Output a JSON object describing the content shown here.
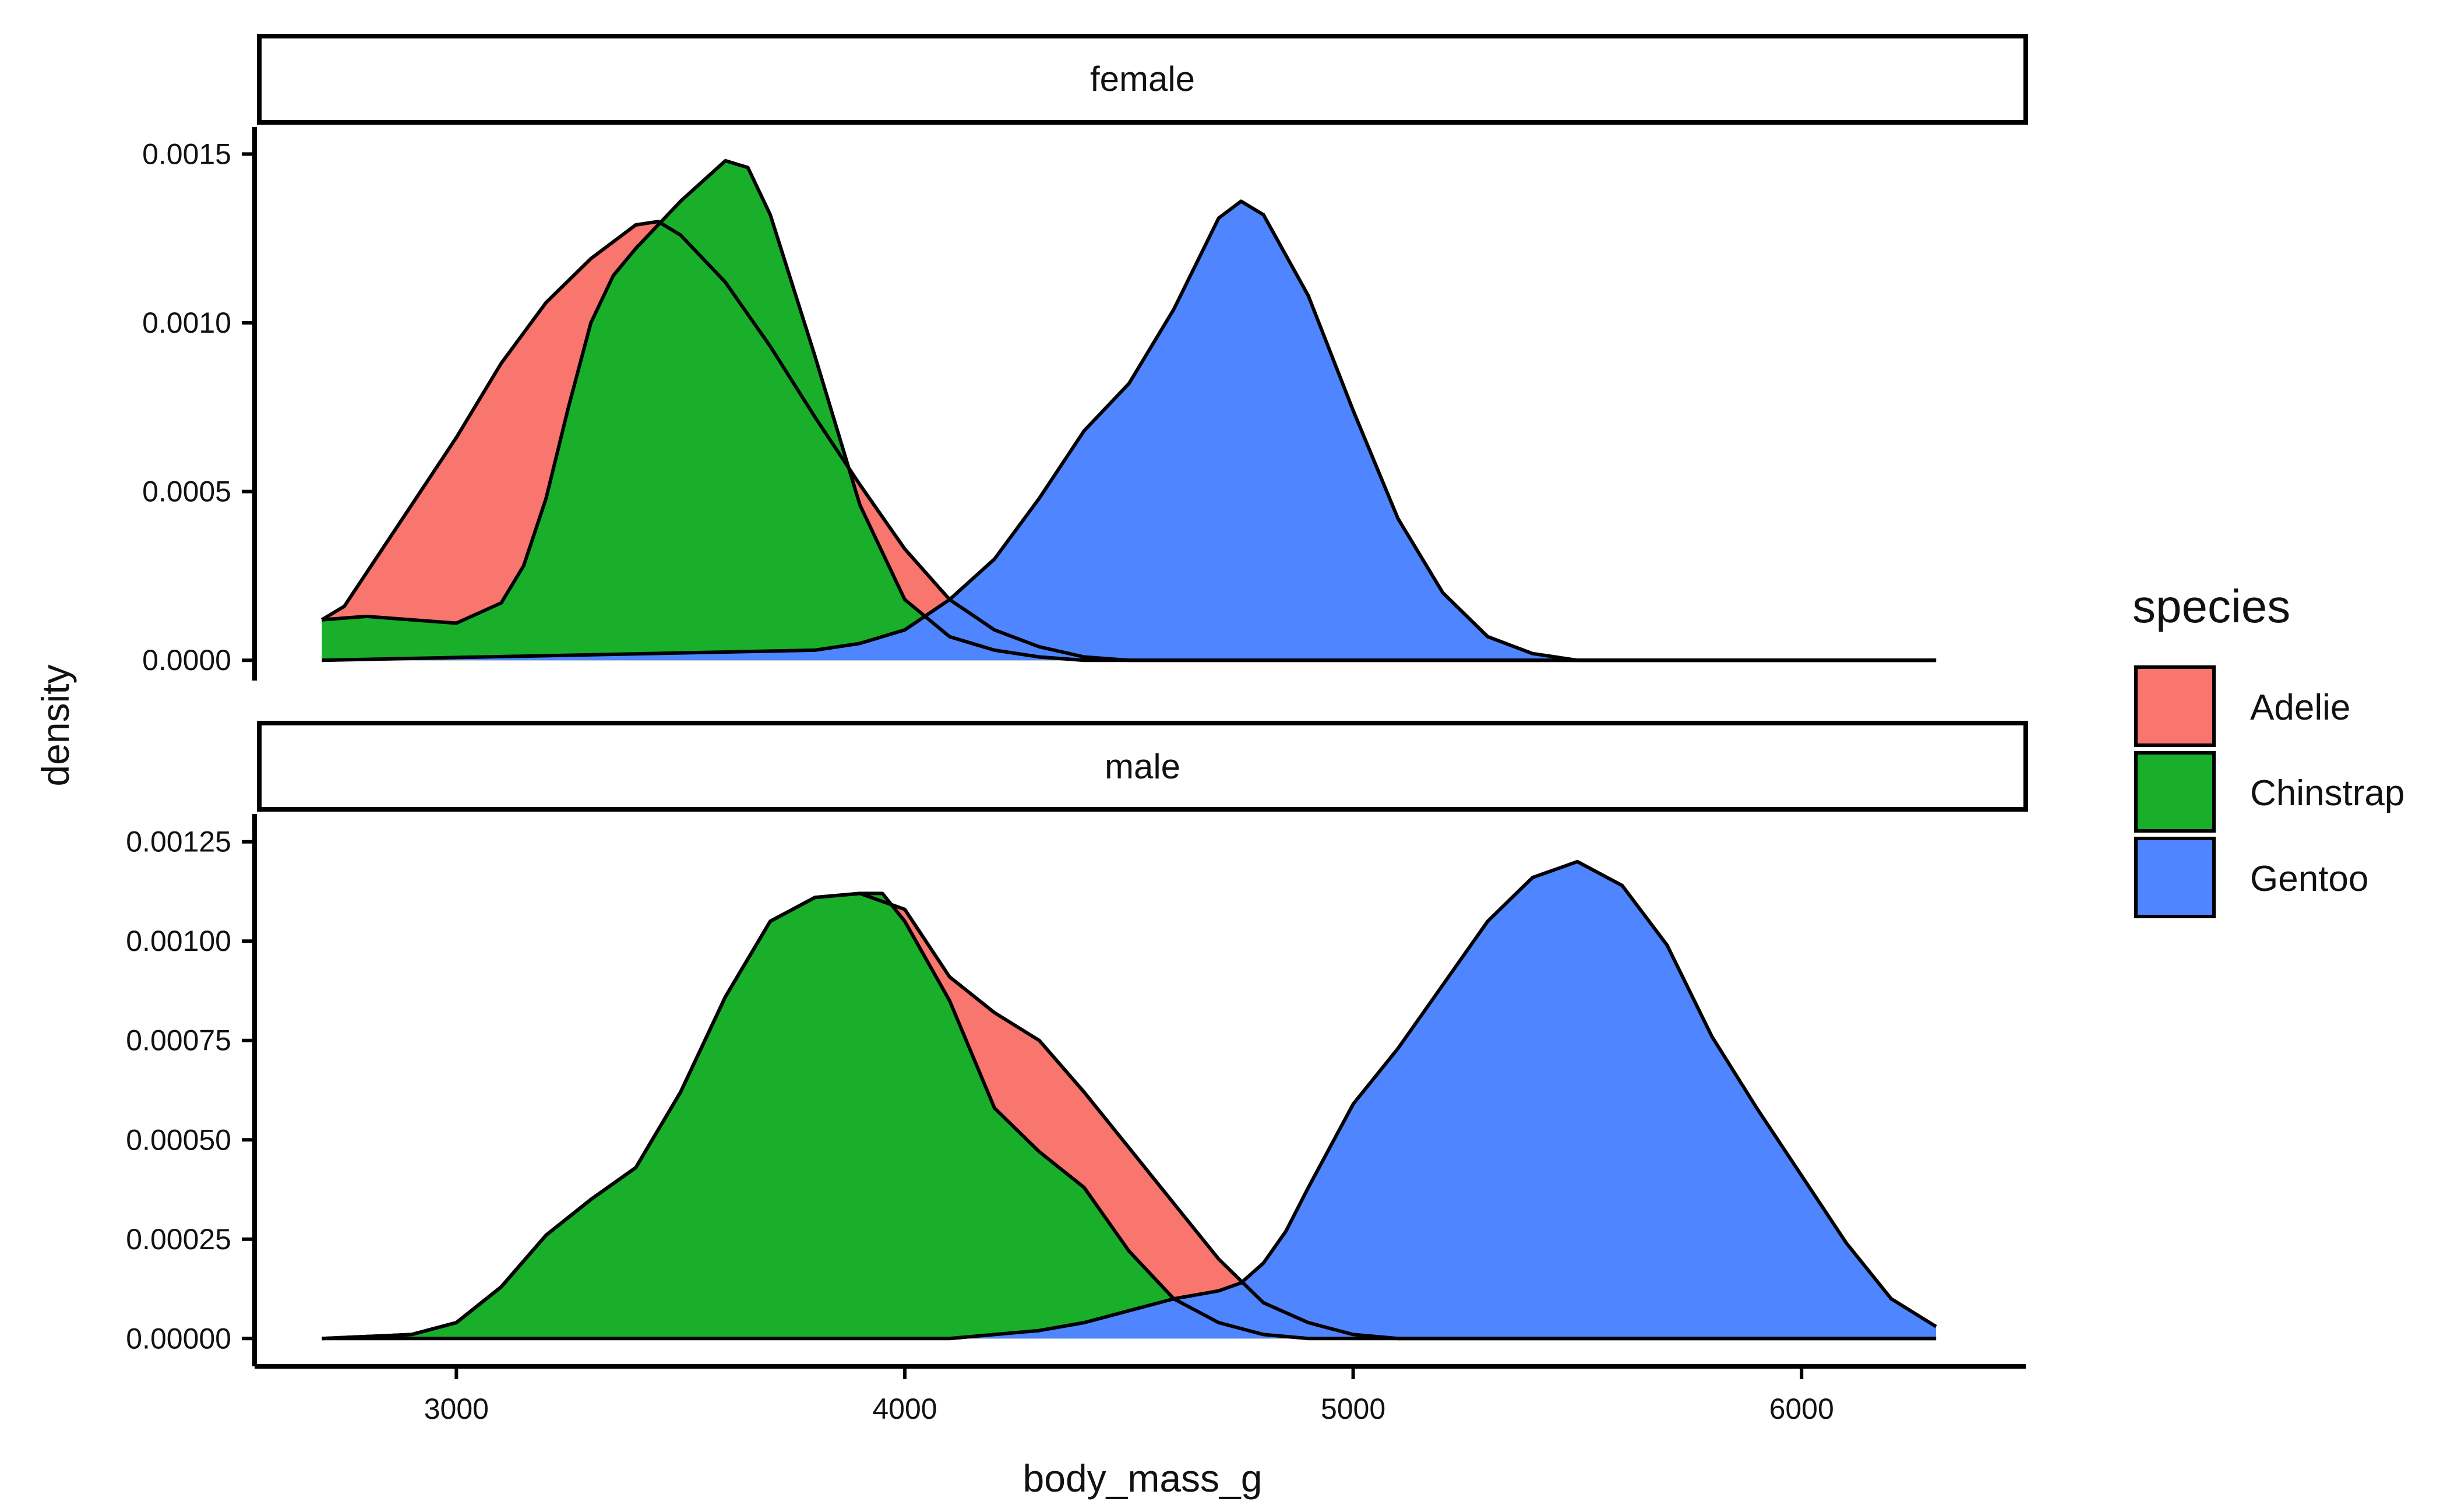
{
  "chart_data": {
    "type": "area",
    "subtype": "density",
    "x": {
      "label": "body_mass_g",
      "range": [
        2550,
        6500
      ],
      "ticks": [
        3000,
        4000,
        5000,
        6000
      ],
      "tick_labels": [
        "3000",
        "4000",
        "5000",
        "6000"
      ]
    },
    "ylabel": "density",
    "facets": [
      {
        "label": "female",
        "ylim": [
          -6e-05,
          0.00158
        ],
        "y_ticks": [
          0,
          0.0005,
          0.001,
          0.0015
        ],
        "y_tick_labels": [
          "0.0000",
          "0.0005",
          "0.0010",
          "0.0015"
        ],
        "series": [
          {
            "name": "Adelie",
            "x": [
              2700,
              2750,
              2800,
              2900,
              3000,
              3100,
              3200,
              3300,
              3400,
              3450,
              3500,
              3600,
              3700,
              3800,
              3900,
              4000,
              4100,
              4200,
              4300,
              4400,
              4500,
              6300
            ],
            "y": [
              0.00012,
              0.00016,
              0.00026,
              0.00046,
              0.00066,
              0.00088,
              0.00106,
              0.00119,
              0.00129,
              0.0013,
              0.00126,
              0.00112,
              0.00093,
              0.00072,
              0.00052,
              0.00033,
              0.00018,
              9e-05,
              4e-05,
              1e-05,
              0.0,
              0.0
            ]
          },
          {
            "name": "Chinstrap",
            "x": [
              2700,
              2800,
              2900,
              3000,
              3100,
              3150,
              3200,
              3250,
              3300,
              3350,
              3400,
              3500,
              3600,
              3650,
              3700,
              3800,
              3900,
              4000,
              4100,
              4200,
              4300,
              4400,
              4500,
              6300
            ],
            "y": [
              0.00012,
              0.00013,
              0.00012,
              0.00011,
              0.00017,
              0.00028,
              0.00048,
              0.00075,
              0.001,
              0.00114,
              0.00122,
              0.00136,
              0.00148,
              0.00146,
              0.00132,
              0.0009,
              0.00046,
              0.00018,
              7e-05,
              3e-05,
              1e-05,
              0.0,
              0.0,
              0.0
            ]
          },
          {
            "name": "Gentoo",
            "x": [
              2700,
              3800,
              3900,
              4000,
              4100,
              4200,
              4300,
              4400,
              4500,
              4600,
              4700,
              4750,
              4800,
              4900,
              5000,
              5100,
              5200,
              5300,
              5400,
              5500,
              6300
            ],
            "y": [
              0.0,
              3e-05,
              5e-05,
              9e-05,
              0.00018,
              0.0003,
              0.00048,
              0.00068,
              0.00082,
              0.00104,
              0.00131,
              0.00136,
              0.00132,
              0.00108,
              0.00074,
              0.00042,
              0.0002,
              7e-05,
              2e-05,
              0.0,
              0.0
            ]
          }
        ]
      },
      {
        "label": "male",
        "ylim": [
          -7e-05,
          0.00132
        ],
        "y_ticks": [
          0,
          0.00025,
          0.0005,
          0.00075,
          0.001,
          0.00125
        ],
        "y_tick_labels": [
          "0.00000",
          "0.00025",
          "0.00050",
          "0.00075",
          "0.00100",
          "0.00125"
        ],
        "series": [
          {
            "name": "Adelie",
            "x": [
              2700,
              2900,
              3000,
              3100,
              3200,
              3300,
              3400,
              3500,
              3600,
              3700,
              3800,
              3900,
              4000,
              4100,
              4200,
              4300,
              4400,
              4500,
              4600,
              4700,
              4800,
              4900,
              5000,
              5100,
              5200,
              6300
            ],
            "y": [
              0.0,
              1e-05,
              4e-05,
              0.00013,
              0.00026,
              0.00035,
              0.00043,
              0.00062,
              0.00086,
              0.00105,
              0.00111,
              0.00112,
              0.00108,
              0.00091,
              0.00082,
              0.00075,
              0.00062,
              0.00048,
              0.00034,
              0.0002,
              9e-05,
              4e-05,
              1e-05,
              0.0,
              0.0,
              0.0
            ]
          },
          {
            "name": "Chinstrap",
            "x": [
              2700,
              2900,
              3000,
              3100,
              3200,
              3300,
              3400,
              3500,
              3600,
              3700,
              3800,
              3900,
              3950,
              4000,
              4100,
              4200,
              4300,
              4400,
              4500,
              4600,
              4700,
              4800,
              4900,
              5000,
              5100,
              6300
            ],
            "y": [
              0.0,
              1e-05,
              4e-05,
              0.00013,
              0.00026,
              0.00035,
              0.00043,
              0.00062,
              0.00086,
              0.00105,
              0.00111,
              0.00112,
              0.00112,
              0.00105,
              0.00085,
              0.00058,
              0.00047,
              0.00038,
              0.00022,
              0.0001,
              4e-05,
              1e-05,
              0.0,
              0.0,
              0.0,
              0.0
            ]
          },
          {
            "name": "Gentoo",
            "x": [
              2700,
              4100,
              4200,
              4300,
              4400,
              4500,
              4600,
              4700,
              4750,
              4800,
              4850,
              4900,
              5000,
              5100,
              5200,
              5300,
              5400,
              5500,
              5600,
              5700,
              5800,
              5900,
              6000,
              6100,
              6200,
              6300
            ],
            "y": [
              0.0,
              0.0,
              1e-05,
              2e-05,
              4e-05,
              7e-05,
              0.0001,
              0.00012,
              0.00014,
              0.00019,
              0.00027,
              0.00038,
              0.00059,
              0.00073,
              0.00089,
              0.00105,
              0.00116,
              0.0012,
              0.00114,
              0.00099,
              0.00076,
              0.00058,
              0.00041,
              0.00024,
              0.0001,
              3e-05
            ]
          }
        ]
      }
    ],
    "legend": {
      "title": "species",
      "position": "right",
      "items": [
        {
          "name": "Adelie",
          "color": "#F8766D"
        },
        {
          "name": "Chinstrap",
          "color": "#1AAF2A"
        },
        {
          "name": "Gentoo",
          "color": "#4F86FF"
        }
      ]
    }
  }
}
